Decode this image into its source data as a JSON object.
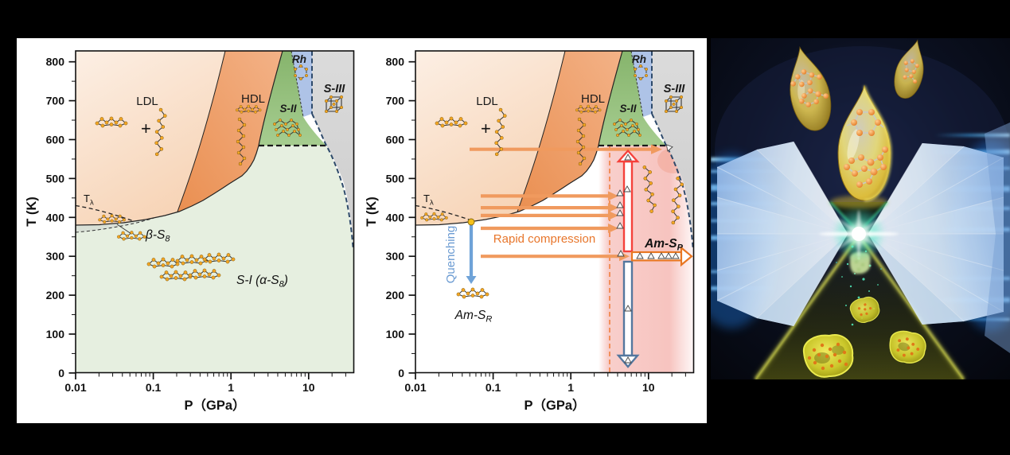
{
  "figure": {
    "background": "#000000",
    "panel_background": "#FFFFFF"
  },
  "axes": {
    "x_label": "P（GPa）",
    "y_label": "T (K)",
    "x_ticks": [
      "0.01",
      "0.1",
      "1",
      "10"
    ],
    "x_tick_values": [
      0.01,
      0.1,
      1,
      10
    ],
    "y_ticks": [
      "0",
      "100",
      "200",
      "300",
      "400",
      "500",
      "600",
      "700",
      "800"
    ]
  },
  "regions": {
    "ldl": "LDL",
    "hdl": "HDL",
    "s_ii": "S-II",
    "rh": "Rh",
    "s_iii": "S-III",
    "t_base": "T",
    "t_sub": "λ",
    "mixture_plus": "+"
  },
  "left_labels": {
    "beta_base": "β-S",
    "beta_sub": "8",
    "s1_pre": "S-I (α-S",
    "s1_sub": "8",
    "s1_close": ")"
  },
  "middle_labels": {
    "quenching": "Quenching",
    "rapid": "Rapid compression",
    "amsr_base": "Am-S",
    "amsr_sub": "R",
    "amsp_base": "Am-S",
    "amsp_sub": "P"
  },
  "icons": {
    "s8_ring": "sulfur-s8-ring-icon",
    "polymer_chain": "sulfur-polymer-chain-icon",
    "s2_stack": "s2-trigonal-chains-icon",
    "rh_hexagon": "rhombohedral-s6-hexagon-icon",
    "s3_cube": "s3-tetragonal-cube-icon",
    "am_ring": "amorphous-ring-icon"
  },
  "colors": {
    "ldl_fill": "#F8DCC4",
    "hdl_fill": "#EE9C5F",
    "s1_fill": "#E6EFE0",
    "beta_sliver_fill": "#D9E0D6",
    "s2_fill": "#96C07E",
    "rh_fill": "#AEC3E7",
    "s3_fill": "#D5D5D5",
    "pink_band": "#F7C6C2",
    "navy_dashed_line": "#2E4A6B",
    "orange_arrow": "#F09A5E",
    "orange_text": "#E8762B",
    "orange_dashed_line": "#F08040",
    "red_arrow": "#F5413B",
    "quench_arrow": "#6FA3D8",
    "quench_text": "#6B9BD2",
    "open_blue_arrow": "#54779E",
    "yellow_marker": "#F5C01A",
    "sulfur_atom": "#F5A623",
    "dac_gold": "#E2C23E",
    "dac_diamond": "#BBD6F3",
    "dac_glow": "#7FF5D8",
    "dac_cone_edge": "#D8DC48",
    "dac_streak": "#3FA8F0"
  },
  "chart_data": [
    {
      "type": "area",
      "title": "Equilibrium phase diagram of sulfur",
      "xlabel": "P（GPa）",
      "ylabel": "T (K)",
      "x_scale": "log",
      "xlim": [
        0.01,
        40
      ],
      "ylim": [
        0,
        828
      ],
      "x_ticks": [
        0.01,
        0.1,
        1,
        10
      ],
      "y_ticks": [
        0,
        100,
        200,
        300,
        400,
        500,
        600,
        700,
        800
      ],
      "regions": [
        "LDL",
        "HDL",
        "S-II",
        "Rh",
        "S-III",
        "β-S8",
        "S-I (α-S8)"
      ],
      "boundaries": {
        "melting_curve": [
          [
            0.01,
            397
          ],
          [
            0.05,
            404
          ],
          [
            0.1,
            412
          ],
          [
            0.3,
            430
          ],
          [
            0.6,
            455
          ],
          [
            1,
            478
          ],
          [
            1.6,
            505
          ],
          [
            2.2,
            530
          ],
          [
            2.8,
            558
          ],
          [
            3.3,
            585
          ]
        ],
        "t_lambda_dashed": [
          [
            0.01,
            430
          ],
          [
            0.1,
            415
          ],
          [
            0.17,
            407
          ]
        ],
        "beta_s8_lower_dashed": [
          [
            0.01,
            362
          ],
          [
            0.05,
            378
          ],
          [
            0.15,
            403
          ]
        ],
        "ldl_hdl_line": [
          [
            0.21,
            415
          ],
          [
            0.45,
            520
          ],
          [
            0.75,
            660
          ],
          [
            0.9,
            828
          ]
        ],
        "hdl_s2_line": [
          [
            3.3,
            585
          ],
          [
            4.2,
            700
          ],
          [
            5.5,
            828
          ]
        ],
        "s2_s1_585K_dashed": [
          [
            3.3,
            585
          ],
          [
            17,
            585
          ]
        ],
        "s3_left_vertical_dashed_P": 11,
        "s3_melt_dashed": [
          [
            11,
            655
          ],
          [
            14,
            585
          ],
          [
            20,
            490
          ],
          [
            28,
            390
          ],
          [
            36,
            300
          ]
        ]
      }
    },
    {
      "type": "area",
      "title": "Rapid compression and quenching pathways",
      "xlabel": "P（GPa）",
      "ylabel": "T (K)",
      "x_scale": "log",
      "xlim": [
        0.01,
        40
      ],
      "ylim": [
        0,
        828
      ],
      "regions": [
        "LDL",
        "HDL",
        "S-II",
        "Rh",
        "S-III",
        "Am-S_R",
        "Am-S_P"
      ],
      "annotations": {
        "rapid_compression_arrows": [
          {
            "T": 575,
            "P_from": 0.05,
            "P_to": 14
          },
          {
            "T": 455,
            "P_from": 0.07,
            "P_to": 4.4
          },
          {
            "T": 425,
            "P_from": 0.07,
            "P_to": 4.4
          },
          {
            "T": 405,
            "P_from": 0.07,
            "P_to": 4.4
          },
          {
            "T": 372,
            "P_from": 0.07,
            "P_to": 4.4
          },
          {
            "T": 300,
            "P_from": 0.07,
            "P_to": 30
          }
        ],
        "quenching_arrow": {
          "P": 0.052,
          "T_from": 405,
          "T_to": 250
        },
        "heating_arrow_red": {
          "P": 5.4,
          "T_from": 315,
          "T_to": 578
        },
        "cooling_arrow_blue": {
          "P": 5.4,
          "T_from": 283,
          "T_to": 8
        },
        "dashed_threshold_P": 3.2,
        "am_sp_band_P": [
          3.3,
          30
        ],
        "products": {
          "low_P_quench": "Am-S_R",
          "high_P": "Am-S_P"
        }
      }
    }
  ]
}
